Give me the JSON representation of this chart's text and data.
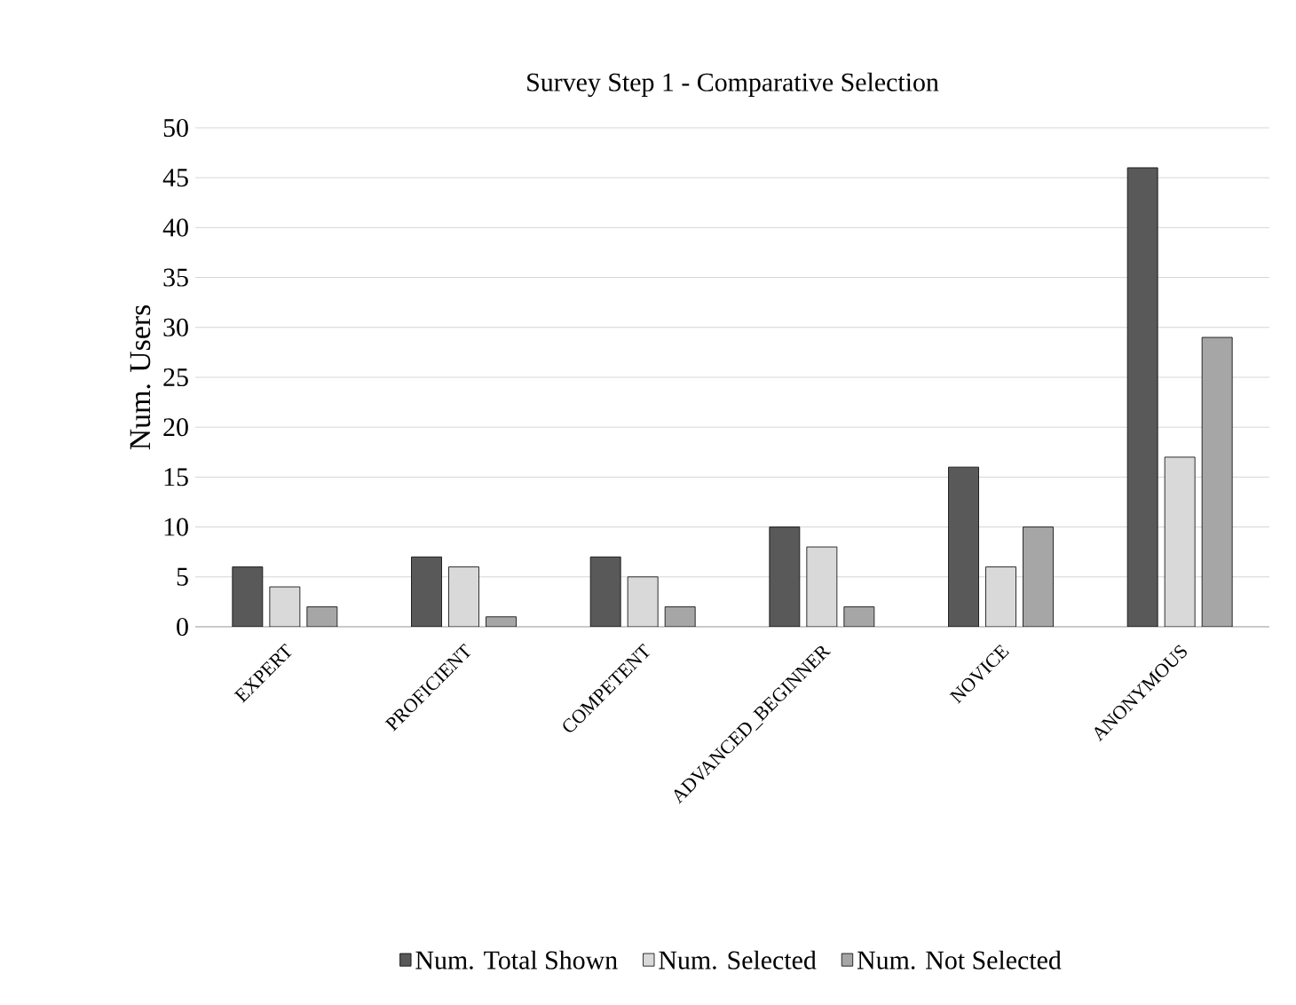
{
  "chart_data": {
    "type": "bar",
    "title": "Survey Step 1 - Comparative Selection",
    "ylabel": "Num. Users",
    "categories": [
      "EXPERT",
      "PROFICIENT",
      "COMPETENT",
      "ADVANCED_BEGINNER",
      "NOVICE",
      "ANONYMOUS"
    ],
    "series": [
      {
        "name": "Num. Total Shown",
        "color": "#595959",
        "values": [
          6,
          7,
          7,
          10,
          16,
          46
        ]
      },
      {
        "name": "Num. Selected",
        "color": "#d9d9d9",
        "values": [
          4,
          6,
          5,
          8,
          6,
          17
        ]
      },
      {
        "name": "Num. Not Selected",
        "color": "#a6a6a6",
        "values": [
          2,
          1,
          2,
          2,
          10,
          29
        ]
      }
    ],
    "ylim": [
      0,
      50
    ],
    "yticks": [
      0,
      5,
      10,
      15,
      20,
      25,
      30,
      35,
      40,
      45,
      50
    ],
    "grid": "y",
    "legend": "bottom"
  }
}
